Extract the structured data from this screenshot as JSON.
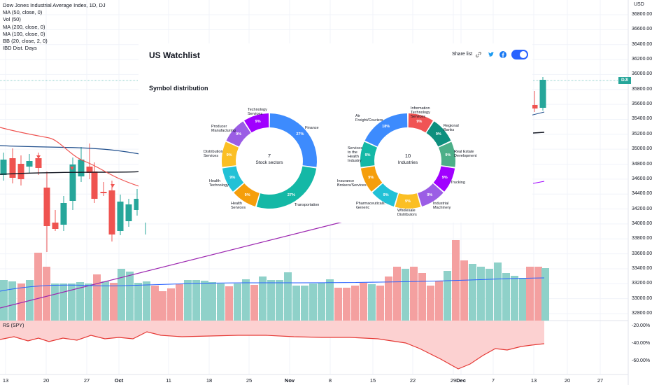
{
  "legend": {
    "title": "Dow Jones Industrial Average Index, 1D, DJ",
    "lines": [
      "MA (50, close, 0)",
      "Vol (50)",
      "MA (200, close, 0)",
      "MA (100, close, 0)",
      "BB (20, close, 2, 0)",
      "IBD Dist. Days"
    ]
  },
  "currency": "USD",
  "price_axis": [
    "36800.00",
    "36600.00",
    "36400.00",
    "36200.00",
    "36000.00",
    "35800.00",
    "35600.00",
    "35400.00",
    "35200.00",
    "35000.00",
    "34800.00",
    "34600.00",
    "34400.00",
    "34200.00",
    "34000.00",
    "33800.00",
    "33600.00",
    "33400.00",
    "33200.00",
    "33000.00",
    "32800.00"
  ],
  "rs_axis": [
    "-20.00%",
    "-40.00%",
    "-60.00%"
  ],
  "rs_label": "RS (SPY)",
  "symbol_tag": "DJI",
  "time_axis": [
    {
      "label": "13",
      "bold": false
    },
    {
      "label": "20",
      "bold": false
    },
    {
      "label": "27",
      "bold": false
    },
    {
      "label": "Oct",
      "bold": true
    },
    {
      "label": "11",
      "bold": false
    },
    {
      "label": "18",
      "bold": false
    },
    {
      "label": "25",
      "bold": false
    },
    {
      "label": "Nov",
      "bold": true
    },
    {
      "label": "8",
      "bold": false
    },
    {
      "label": "15",
      "bold": false
    },
    {
      "label": "22",
      "bold": false
    },
    {
      "label": "29",
      "bold": false
    },
    {
      "label": "Dec",
      "bold": true
    },
    {
      "label": "7",
      "bold": false
    },
    {
      "label": "13",
      "bold": false
    },
    {
      "label": "20",
      "bold": false
    },
    {
      "label": "27",
      "bold": false
    }
  ],
  "watchlist": {
    "title": "US Watchlist",
    "share_label": "Share list",
    "icons": [
      "link-icon",
      "twitter-icon",
      "facebook-icon"
    ],
    "toggle_on": true,
    "section_title": "Symbol distribution"
  },
  "sectors": {
    "count": "7",
    "label": "Stock sectors",
    "slices": [
      {
        "name": "Finance",
        "value": 27,
        "color": "#3d8bfd"
      },
      {
        "name": "Transportation",
        "value": 27,
        "color": "#14b8a6"
      },
      {
        "name": "Health Services",
        "value": 9,
        "color": "#f59e0b"
      },
      {
        "name": "Health Technology",
        "value": 9,
        "color": "#22c1d6"
      },
      {
        "name": "Distribution Services",
        "value": 9,
        "color": "#fbbf24"
      },
      {
        "name": "Producer Manufacturing",
        "value": 9,
        "color": "#9b5de5"
      },
      {
        "name": "Technology Services",
        "value": 9,
        "color": "#a000ff"
      }
    ],
    "labels": [
      {
        "text": "Technology\nServices"
      },
      {
        "text": "Producer\nManufacturing"
      },
      {
        "text": "Distribution\nServices"
      },
      {
        "text": "Health\nTechnology"
      },
      {
        "text": "Health\nServices"
      },
      {
        "text": "Finance"
      },
      {
        "text": "Transportation"
      }
    ],
    "pct_text": [
      "27%",
      "27%",
      "9%",
      "9%",
      "9%",
      "9%",
      "9%"
    ]
  },
  "industries": {
    "count": "10",
    "label": "Industries",
    "slices": [
      {
        "name": "Information Technology Services",
        "value": 9,
        "color": "#f05454"
      },
      {
        "name": "Regional Banks",
        "value": 9,
        "color": "#0e8f7e"
      },
      {
        "name": "Real Estate Development",
        "value": 9,
        "color": "#4caf88"
      },
      {
        "name": "Trucking",
        "value": 9,
        "color": "#a000ff"
      },
      {
        "name": "Industrial Machinery",
        "value": 9,
        "color": "#9b5de5"
      },
      {
        "name": "Wholesale Distributors",
        "value": 9,
        "color": "#fbbf24"
      },
      {
        "name": "Pharmaceuticals: Generic",
        "value": 9,
        "color": "#22c1d6"
      },
      {
        "name": "Insurance Brokers/Services",
        "value": 9,
        "color": "#f59e0b"
      },
      {
        "name": "Services to the Health Industry",
        "value": 9,
        "color": "#14b8a6"
      },
      {
        "name": "Air Freight/Couriers",
        "value": 18,
        "color": "#3d8bfd"
      }
    ],
    "labels": [
      {
        "text": "Information\nTechnology\nServices"
      },
      {
        "text": "Regional\nBanks"
      },
      {
        "text": "Real Estate\nDevelopment"
      },
      {
        "text": "Trucking"
      },
      {
        "text": "Industrial\nMachinery"
      },
      {
        "text": "Wholesale\nDistributors"
      },
      {
        "text": "Pharmaceuticals:\nGeneric"
      },
      {
        "text": "Insurance\nBrokers/Services"
      },
      {
        "text": "Services\nto the\nHealth\nIndustry"
      },
      {
        "text": "Air\nFreight/Couriers"
      }
    ],
    "pct_text": [
      "9%",
      "9%",
      "9%",
      "9%",
      "9%",
      "9%",
      "9%",
      "9%",
      "9%",
      "18%"
    ]
  },
  "colors": {
    "up": "#26a69a",
    "down": "#ef5350",
    "vol_up": "#8fd1c9",
    "vol_down": "#f4a0a0",
    "ma_blue": "#2962ff",
    "rs_fill": "#fcd1d1"
  }
}
